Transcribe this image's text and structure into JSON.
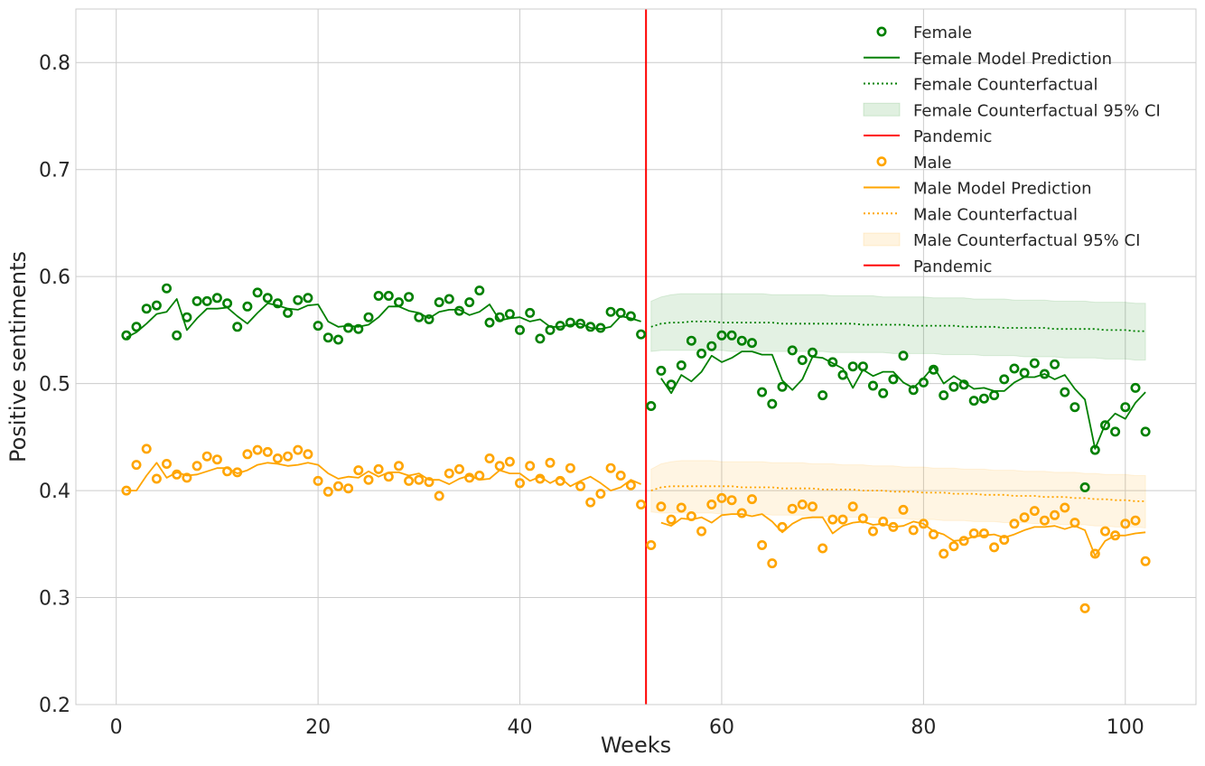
{
  "chart_data": {
    "type": "scatter",
    "xlabel": "Weeks",
    "ylabel": "Positive sentiments",
    "xlim": [
      -4,
      107
    ],
    "ylim": [
      0.2,
      0.85
    ],
    "xticks": [
      0,
      20,
      40,
      60,
      80,
      100
    ],
    "yticks": [
      0.2,
      0.3,
      0.4,
      0.5,
      0.6,
      0.7,
      0.8
    ],
    "xtick_labels": [
      "0",
      "20",
      "40",
      "60",
      "80",
      "100"
    ],
    "ytick_labels": [
      "0.2",
      "0.3",
      "0.4",
      "0.5",
      "0.6",
      "0.7",
      "0.8"
    ],
    "grid": true,
    "legend_position": "top-right",
    "intervention_x": 52.5,
    "colors": {
      "female": "#008000",
      "male": "#FFA500",
      "pandemic": "#FF0000"
    },
    "legend": [
      "Female",
      "Female Model Prediction",
      "Female Counterfactual",
      "Female Counterfactual 95% CI",
      "Pandemic",
      "Male",
      "Male Model Prediction",
      "Male Counterfactual",
      "Male Counterfactual 95% CI",
      "Pandemic"
    ],
    "series": [
      {
        "name": "Female",
        "x": [
          1,
          2,
          3,
          4,
          5,
          6,
          7,
          8,
          9,
          10,
          11,
          12,
          13,
          14,
          15,
          16,
          17,
          18,
          19,
          20,
          21,
          22,
          23,
          24,
          25,
          26,
          27,
          28,
          29,
          30,
          31,
          32,
          33,
          34,
          35,
          36,
          37,
          38,
          39,
          40,
          41,
          42,
          43,
          44,
          45,
          46,
          47,
          48,
          49,
          50,
          51,
          52,
          53,
          54,
          55,
          56,
          57,
          58,
          59,
          60,
          61,
          62,
          63,
          64,
          65,
          66,
          67,
          68,
          69,
          70,
          71,
          72,
          73,
          74,
          75,
          76,
          77,
          78,
          79,
          80,
          81,
          82,
          83,
          84,
          85,
          86,
          87,
          88,
          89,
          90,
          91,
          92,
          93,
          94,
          95,
          96,
          97,
          98,
          99,
          100,
          101,
          102
        ],
        "observed": [
          0.545,
          0.553,
          0.57,
          0.573,
          0.589,
          0.545,
          0.562,
          0.577,
          0.577,
          0.58,
          0.575,
          0.553,
          0.572,
          0.585,
          0.58,
          0.575,
          0.566,
          0.578,
          0.58,
          0.554,
          0.543,
          0.541,
          0.552,
          0.551,
          0.562,
          0.582,
          0.582,
          0.576,
          0.581,
          0.562,
          0.56,
          0.576,
          0.579,
          0.568,
          0.576,
          0.587,
          0.557,
          0.562,
          0.565,
          0.55,
          0.566,
          0.542,
          0.55,
          0.554,
          0.557,
          0.556,
          0.553,
          0.552,
          0.567,
          0.566,
          0.563,
          0.546,
          0.479,
          0.512,
          0.499,
          0.517,
          0.54,
          0.528,
          0.535,
          0.545,
          0.545,
          0.54,
          0.538,
          0.492,
          0.481,
          0.497,
          0.531,
          0.522,
          0.529,
          0.489,
          0.52,
          0.508,
          0.516,
          0.516,
          0.498,
          0.491,
          0.504,
          0.526,
          0.494,
          0.501,
          0.513,
          0.489,
          0.497,
          0.499,
          0.484,
          0.486,
          0.489,
          0.504,
          0.514,
          0.51,
          0.519,
          0.509,
          0.518,
          0.492,
          0.478,
          0.403,
          0.438,
          0.461,
          0.455,
          0.478,
          0.496,
          0.455
        ],
        "prediction": [
          0.543,
          0.548,
          0.556,
          0.565,
          0.567,
          0.579,
          0.55,
          0.561,
          0.57,
          0.57,
          0.571,
          0.563,
          0.556,
          0.566,
          0.575,
          0.573,
          0.57,
          0.569,
          0.573,
          0.574,
          0.558,
          0.553,
          0.554,
          0.553,
          0.555,
          0.562,
          0.572,
          0.572,
          0.568,
          0.566,
          0.561,
          0.567,
          0.569,
          0.569,
          0.564,
          0.567,
          0.574,
          0.559,
          0.561,
          0.562,
          0.558,
          0.56,
          0.553,
          0.553,
          0.555,
          0.556,
          0.552,
          0.551,
          0.553,
          0.563,
          0.561,
          0.558,
          null,
          0.505,
          0.491,
          0.508,
          0.502,
          0.511,
          0.526,
          0.52,
          0.524,
          0.53,
          0.53,
          0.527,
          0.527,
          0.503,
          0.494,
          0.504,
          0.525,
          0.524,
          0.519,
          0.514,
          0.496,
          0.513,
          0.507,
          0.511,
          0.511,
          0.501,
          0.496,
          0.505,
          0.516,
          0.5,
          0.507,
          0.501,
          0.495,
          0.496,
          0.493,
          0.493,
          0.501,
          0.506,
          0.506,
          0.509,
          0.504,
          0.508,
          0.495,
          0.485,
          0.439,
          0.462,
          0.472,
          0.467,
          0.482,
          0.492
        ],
        "counterfactual_x": [
          53,
          54,
          55,
          56,
          57,
          58,
          59,
          60,
          61,
          62,
          63,
          64,
          65,
          66,
          67,
          68,
          69,
          70,
          71,
          72,
          73,
          74,
          75,
          76,
          77,
          78,
          79,
          80,
          81,
          82,
          83,
          84,
          85,
          86,
          87,
          88,
          89,
          90,
          91,
          92,
          93,
          94,
          95,
          96,
          97,
          98,
          99,
          100,
          101,
          102
        ],
        "counterfactual": [
          0.553,
          0.556,
          0.557,
          0.557,
          0.558,
          0.558,
          0.558,
          0.557,
          0.557,
          0.557,
          0.557,
          0.557,
          0.557,
          0.556,
          0.556,
          0.556,
          0.556,
          0.556,
          0.556,
          0.556,
          0.556,
          0.555,
          0.555,
          0.555,
          0.555,
          0.555,
          0.554,
          0.554,
          0.554,
          0.554,
          0.554,
          0.553,
          0.553,
          0.553,
          0.553,
          0.552,
          0.552,
          0.552,
          0.552,
          0.552,
          0.551,
          0.551,
          0.551,
          0.551,
          0.551,
          0.55,
          0.55,
          0.55,
          0.549,
          0.549
        ],
        "ci_lower": [
          0.53,
          0.531,
          0.531,
          0.531,
          0.531,
          0.531,
          0.531,
          0.531,
          0.53,
          0.53,
          0.53,
          0.53,
          0.53,
          0.53,
          0.53,
          0.53,
          0.53,
          0.53,
          0.529,
          0.529,
          0.529,
          0.529,
          0.529,
          0.529,
          0.528,
          0.528,
          0.528,
          0.528,
          0.528,
          0.527,
          0.527,
          0.527,
          0.527,
          0.526,
          0.526,
          0.526,
          0.526,
          0.525,
          0.525,
          0.525,
          0.525,
          0.524,
          0.524,
          0.524,
          0.524,
          0.523,
          0.523,
          0.523,
          0.522,
          0.522
        ],
        "ci_upper": [
          0.577,
          0.581,
          0.583,
          0.584,
          0.584,
          0.584,
          0.584,
          0.584,
          0.584,
          0.584,
          0.584,
          0.584,
          0.583,
          0.583,
          0.583,
          0.583,
          0.583,
          0.583,
          0.582,
          0.582,
          0.582,
          0.582,
          0.582,
          0.581,
          0.581,
          0.581,
          0.581,
          0.581,
          0.58,
          0.58,
          0.58,
          0.58,
          0.579,
          0.579,
          0.579,
          0.579,
          0.578,
          0.578,
          0.578,
          0.578,
          0.577,
          0.577,
          0.577,
          0.577,
          0.576,
          0.576,
          0.576,
          0.576,
          0.575,
          0.575
        ]
      },
      {
        "name": "Male",
        "x": [
          1,
          2,
          3,
          4,
          5,
          6,
          7,
          8,
          9,
          10,
          11,
          12,
          13,
          14,
          15,
          16,
          17,
          18,
          19,
          20,
          21,
          22,
          23,
          24,
          25,
          26,
          27,
          28,
          29,
          30,
          31,
          32,
          33,
          34,
          35,
          36,
          37,
          38,
          39,
          40,
          41,
          42,
          43,
          44,
          45,
          46,
          47,
          48,
          49,
          50,
          51,
          52,
          53,
          54,
          55,
          56,
          57,
          58,
          59,
          60,
          61,
          62,
          63,
          64,
          65,
          66,
          67,
          68,
          69,
          70,
          71,
          72,
          73,
          74,
          75,
          76,
          77,
          78,
          79,
          80,
          81,
          82,
          83,
          84,
          85,
          86,
          87,
          88,
          89,
          90,
          91,
          92,
          93,
          94,
          95,
          96,
          97,
          98,
          99,
          100,
          101,
          102
        ],
        "observed": [
          0.4,
          0.424,
          0.439,
          0.411,
          0.425,
          0.415,
          0.412,
          0.423,
          0.432,
          0.429,
          0.418,
          0.417,
          0.434,
          0.438,
          0.436,
          0.43,
          0.432,
          0.438,
          0.434,
          0.409,
          0.399,
          0.404,
          0.402,
          0.419,
          0.41,
          0.42,
          0.413,
          0.423,
          0.409,
          0.41,
          0.408,
          0.395,
          0.416,
          0.42,
          0.412,
          0.414,
          0.43,
          0.423,
          0.427,
          0.407,
          0.423,
          0.411,
          0.426,
          0.409,
          0.421,
          0.404,
          0.389,
          0.397,
          0.421,
          0.414,
          0.405,
          0.387,
          0.349,
          0.385,
          0.373,
          0.384,
          0.376,
          0.362,
          0.387,
          0.393,
          0.391,
          0.379,
          0.392,
          0.349,
          0.332,
          0.366,
          0.383,
          0.387,
          0.385,
          0.346,
          0.373,
          0.373,
          0.385,
          0.374,
          0.362,
          0.371,
          0.366,
          0.382,
          0.363,
          0.369,
          0.359,
          0.341,
          0.348,
          0.353,
          0.36,
          0.36,
          0.347,
          0.354,
          0.369,
          0.375,
          0.381,
          0.372,
          0.377,
          0.384,
          0.37,
          0.29,
          0.341,
          0.362,
          0.358,
          0.369,
          0.372,
          0.334
        ],
        "prediction": [
          0.4,
          0.4,
          0.414,
          0.426,
          0.412,
          0.417,
          0.414,
          0.415,
          0.418,
          0.421,
          0.421,
          0.416,
          0.419,
          0.424,
          0.426,
          0.425,
          0.423,
          0.424,
          0.426,
          0.424,
          0.416,
          0.411,
          0.413,
          0.412,
          0.418,
          0.413,
          0.417,
          0.417,
          0.414,
          0.416,
          0.41,
          0.41,
          0.406,
          0.411,
          0.414,
          0.41,
          0.411,
          0.419,
          0.416,
          0.416,
          0.409,
          0.413,
          0.407,
          0.412,
          0.404,
          0.409,
          0.413,
          0.407,
          0.4,
          0.403,
          0.41,
          0.406,
          null,
          0.37,
          0.367,
          0.374,
          0.373,
          0.375,
          0.37,
          0.377,
          0.378,
          0.378,
          0.376,
          0.378,
          0.371,
          0.361,
          0.369,
          0.374,
          0.375,
          0.375,
          0.36,
          0.367,
          0.37,
          0.371,
          0.368,
          0.369,
          0.366,
          0.367,
          0.371,
          0.369,
          0.362,
          0.359,
          0.353,
          0.354,
          0.357,
          0.358,
          0.359,
          0.356,
          0.359,
          0.363,
          0.366,
          0.366,
          0.367,
          0.364,
          0.367,
          0.363,
          0.339,
          0.353,
          0.358,
          0.358,
          0.36,
          0.361
        ],
        "counterfactual_x": [
          53,
          54,
          55,
          56,
          57,
          58,
          59,
          60,
          61,
          62,
          63,
          64,
          65,
          66,
          67,
          68,
          69,
          70,
          71,
          72,
          73,
          74,
          75,
          76,
          77,
          78,
          79,
          80,
          81,
          82,
          83,
          84,
          85,
          86,
          87,
          88,
          89,
          90,
          91,
          92,
          93,
          94,
          95,
          96,
          97,
          98,
          99,
          100,
          101,
          102
        ],
        "counterfactual": [
          0.4,
          0.403,
          0.404,
          0.404,
          0.404,
          0.404,
          0.404,
          0.404,
          0.404,
          0.403,
          0.403,
          0.403,
          0.403,
          0.402,
          0.402,
          0.402,
          0.402,
          0.401,
          0.401,
          0.401,
          0.401,
          0.4,
          0.4,
          0.4,
          0.399,
          0.399,
          0.399,
          0.398,
          0.398,
          0.398,
          0.397,
          0.397,
          0.397,
          0.396,
          0.396,
          0.396,
          0.395,
          0.395,
          0.395,
          0.394,
          0.394,
          0.394,
          0.393,
          0.393,
          0.392,
          0.392,
          0.391,
          0.391,
          0.39,
          0.39
        ],
        "ci_lower": [
          0.38,
          0.379,
          0.379,
          0.379,
          0.379,
          0.379,
          0.379,
          0.378,
          0.378,
          0.378,
          0.378,
          0.378,
          0.377,
          0.377,
          0.377,
          0.377,
          0.376,
          0.376,
          0.376,
          0.375,
          0.375,
          0.375,
          0.375,
          0.374,
          0.374,
          0.374,
          0.373,
          0.373,
          0.373,
          0.372,
          0.372,
          0.372,
          0.371,
          0.371,
          0.371,
          0.37,
          0.37,
          0.37,
          0.369,
          0.369,
          0.369,
          0.368,
          0.368,
          0.368,
          0.367,
          0.367,
          0.366,
          0.366,
          0.366,
          0.365
        ],
        "ci_upper": [
          0.42,
          0.425,
          0.427,
          0.428,
          0.428,
          0.428,
          0.428,
          0.427,
          0.427,
          0.427,
          0.427,
          0.427,
          0.426,
          0.426,
          0.426,
          0.426,
          0.425,
          0.425,
          0.425,
          0.424,
          0.424,
          0.424,
          0.423,
          0.423,
          0.423,
          0.422,
          0.422,
          0.422,
          0.421,
          0.421,
          0.421,
          0.42,
          0.42,
          0.42,
          0.419,
          0.419,
          0.419,
          0.418,
          0.418,
          0.418,
          0.417,
          0.417,
          0.417,
          0.416,
          0.416,
          0.415,
          0.415,
          0.415,
          0.414,
          0.414
        ]
      }
    ]
  }
}
